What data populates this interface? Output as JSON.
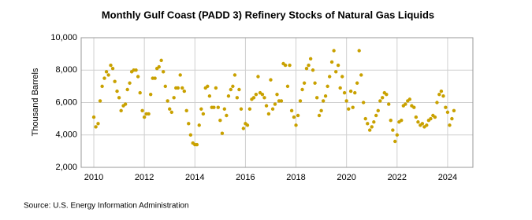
{
  "chart_data": {
    "type": "scatter",
    "title": "Monthly Gulf Coast (PADD 3) Refinery Stocks of Natural Gas Liquids",
    "y_label": "Thousand Barrels",
    "source": "Source: U.S. Energy Information Administration",
    "grid": true,
    "xlim": [
      2009.5,
      2025
    ],
    "xticks": [
      2010,
      2012,
      2014,
      2016,
      2018,
      2020,
      2022,
      2024
    ],
    "ylim": [
      2000,
      10000
    ],
    "yticks": [
      {
        "value": 2000,
        "label": "2,000"
      },
      {
        "value": 4000,
        "label": "4,000"
      },
      {
        "value": 6000,
        "label": "6,000"
      },
      {
        "value": 8000,
        "label": "8,000"
      },
      {
        "value": 10000,
        "label": "10,000"
      }
    ],
    "series": [
      {
        "color": "#c9a100",
        "x": [
          2010,
          2010.08,
          2010.17,
          2010.25,
          2010.33,
          2010.42,
          2010.5,
          2010.58,
          2010.67,
          2010.75,
          2010.83,
          2010.92,
          2011,
          2011.08,
          2011.17,
          2011.25,
          2011.33,
          2011.42,
          2011.5,
          2011.58,
          2011.67,
          2011.75,
          2011.83,
          2011.92,
          2012,
          2012.08,
          2012.17,
          2012.25,
          2012.33,
          2012.42,
          2012.5,
          2012.58,
          2012.67,
          2012.75,
          2012.83,
          2012.92,
          2013,
          2013.08,
          2013.17,
          2013.25,
          2013.33,
          2013.42,
          2013.5,
          2013.58,
          2013.67,
          2013.75,
          2013.83,
          2013.92,
          2014,
          2014.08,
          2014.17,
          2014.25,
          2014.33,
          2014.42,
          2014.5,
          2014.58,
          2014.67,
          2014.75,
          2014.83,
          2014.92,
          2015,
          2015.08,
          2015.17,
          2015.25,
          2015.33,
          2015.42,
          2015.5,
          2015.58,
          2015.67,
          2015.75,
          2015.83,
          2015.92,
          2016,
          2016.08,
          2016.17,
          2016.25,
          2016.33,
          2016.42,
          2016.5,
          2016.58,
          2016.67,
          2016.75,
          2016.83,
          2016.92,
          2017,
          2017.08,
          2017.17,
          2017.25,
          2017.33,
          2017.42,
          2017.5,
          2017.58,
          2017.67,
          2017.75,
          2017.83,
          2017.92,
          2018,
          2018.08,
          2018.17,
          2018.25,
          2018.33,
          2018.42,
          2018.5,
          2018.58,
          2018.67,
          2018.75,
          2018.83,
          2018.92,
          2019,
          2019.08,
          2019.17,
          2019.25,
          2019.33,
          2019.42,
          2019.5,
          2019.58,
          2019.67,
          2019.75,
          2019.83,
          2019.92,
          2020,
          2020.08,
          2020.17,
          2020.25,
          2020.33,
          2020.42,
          2020.5,
          2020.58,
          2020.67,
          2020.75,
          2020.83,
          2020.92,
          2021,
          2021.08,
          2021.17,
          2021.25,
          2021.33,
          2021.42,
          2021.5,
          2021.58,
          2021.67,
          2021.75,
          2021.83,
          2021.92,
          2022,
          2022.08,
          2022.17,
          2022.25,
          2022.33,
          2022.42,
          2022.5,
          2022.58,
          2022.67,
          2022.75,
          2022.83,
          2022.92,
          2023,
          2023.08,
          2023.17,
          2023.25,
          2023.33,
          2023.42,
          2023.5,
          2023.58,
          2023.67,
          2023.75,
          2023.83,
          2023.92,
          2024,
          2024.08,
          2024.17,
          2024.25
        ],
        "values": [
          5100,
          4500,
          4700,
          6100,
          7000,
          7500,
          7900,
          7700,
          8300,
          8100,
          7300,
          6700,
          6300,
          5500,
          5800,
          5900,
          6800,
          7200,
          7900,
          8000,
          8000,
          7600,
          6600,
          5500,
          5100,
          5300,
          5300,
          6500,
          7500,
          7500,
          8100,
          8200,
          8600,
          7900,
          7000,
          6100,
          5600,
          5400,
          6300,
          6900,
          6900,
          7700,
          6900,
          6700,
          5500,
          4700,
          4000,
          3500,
          3400,
          3400,
          4600,
          5600,
          5300,
          6900,
          7000,
          6400,
          5700,
          5700,
          6900,
          5700,
          4900,
          4100,
          5600,
          5200,
          6400,
          6800,
          7000,
          7700,
          6300,
          6800,
          5600,
          4400,
          4700,
          4600,
          5600,
          6200,
          6300,
          6500,
          7600,
          6600,
          6500,
          6300,
          5800,
          5300,
          7400,
          5600,
          5900,
          6500,
          6100,
          6100,
          8400,
          8300,
          7000,
          8300,
          5500,
          5100,
          4600,
          5200,
          6100,
          6800,
          7200,
          8100,
          8300,
          8700,
          8000,
          7200,
          6300,
          5200,
          5500,
          6100,
          6400,
          7000,
          7600,
          8500,
          9200,
          7900,
          8300,
          6900,
          7600,
          6600,
          6100,
          5600,
          6700,
          5700,
          6600,
          7200,
          9200,
          7700,
          6000,
          5000,
          4700,
          4300,
          4500,
          4800,
          5200,
          5500,
          6100,
          6300,
          6600,
          6500,
          5900,
          4900,
          4300,
          3600,
          4000,
          4800,
          4900,
          5800,
          5900,
          6100,
          6200,
          5800,
          5700,
          5100,
          4800,
          4600,
          4700,
          4500,
          4600,
          4900,
          5000,
          5200,
          5100,
          6000,
          6500,
          6700,
          6400,
          5700,
          5400,
          4600,
          5000,
          5500
        ]
      }
    ]
  }
}
